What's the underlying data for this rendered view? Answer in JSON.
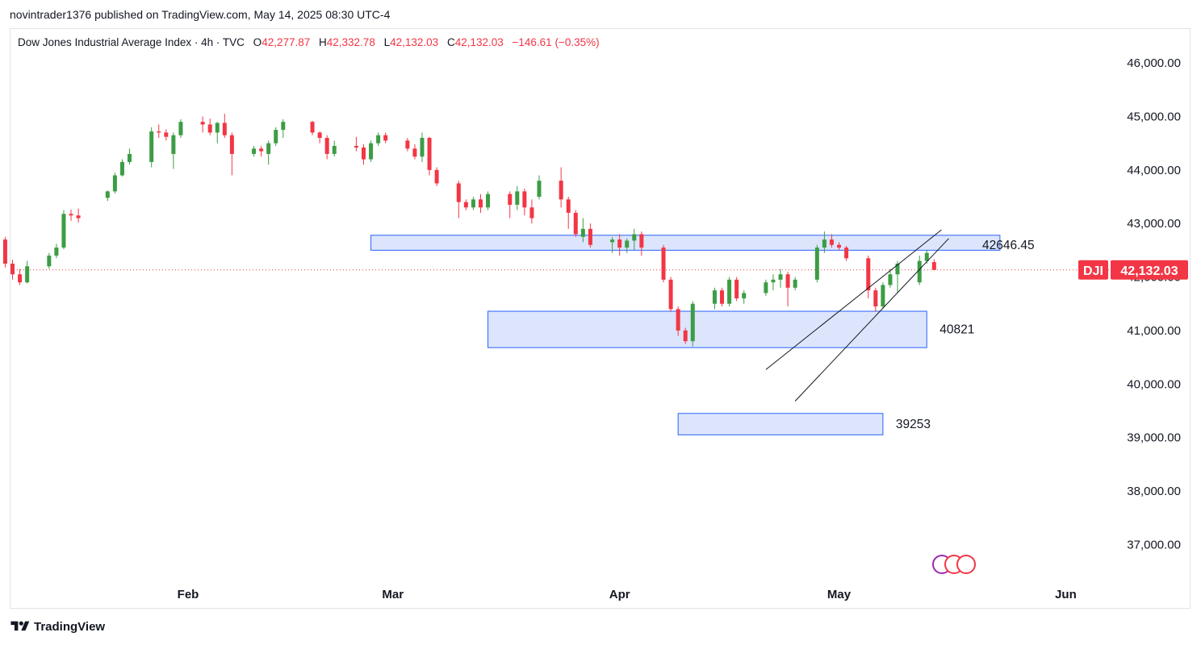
{
  "header": {
    "publisher_line": "novintrader1376 published on TradingView.com, May 14, 2025 08:30 UTC-4"
  },
  "legend": {
    "instrument": "Dow Jones Industrial Average Index · 4h · TVC",
    "open_key": "O",
    "open": "42,277.87",
    "high_key": "H",
    "high": "42,332.78",
    "low_key": "L",
    "low": "42,132.03",
    "close_key": "C",
    "close": "42,132.03",
    "change": "−146.61 (−0.35%)"
  },
  "price_badge": {
    "symbol": "DJI",
    "price": "42,132.03",
    "color": "#f23645"
  },
  "footer": {
    "brand": "TradingView"
  },
  "colors": {
    "up": "#3c9d44",
    "down": "#f23645",
    "zone_fill": "#d6e0fb",
    "zone_border": "#2962ff",
    "text": "#131722"
  },
  "chart_data": {
    "type": "candlestick",
    "timeframe": "4h",
    "x_ticks": [
      "Feb",
      "Mar",
      "Apr",
      "May",
      "Jun"
    ],
    "y_ticks": [
      "37,000.00",
      "38,000.00",
      "39,000.00",
      "40,000.00",
      "41,000.00",
      "42,000.00",
      "43,000.00",
      "44,000.00",
      "45,000.00",
      "46,000.00"
    ],
    "ylim": [
      36500,
      46400
    ],
    "last_price": 42132.03,
    "zones": [
      {
        "label": "",
        "from": "2025-02-26",
        "to": "2025-05-23",
        "low": 42500,
        "high": 42780
      },
      {
        "label": "40821",
        "from": "2025-03-14",
        "to": "2025-05-13",
        "low": 40680,
        "high": 41360
      },
      {
        "label": "39253",
        "from": "2025-04-09",
        "to": "2025-05-07",
        "low": 39050,
        "high": 39450
      }
    ],
    "channel": {
      "upper": {
        "from": [
          "2025-04-21",
          40270
        ],
        "to": [
          "2025-05-15",
          42880
        ]
      },
      "lower": {
        "from": [
          "2025-04-25",
          39680
        ],
        "to": [
          "2025-05-16",
          42720
        ]
      },
      "label": "42646.45"
    },
    "candles": [
      {
        "date": "2025-01-06",
        "open": 42580,
        "high": 42710,
        "low": 42380,
        "close": 42700
      },
      {
        "date": "2025-01-07",
        "open": 42700,
        "high": 42750,
        "low": 42180,
        "close": 42250
      },
      {
        "date": "2025-01-08",
        "open": 42250,
        "high": 42320,
        "low": 41950,
        "close": 42050
      },
      {
        "date": "2025-01-09",
        "open": 42050,
        "high": 42150,
        "low": 41850,
        "close": 41900
      },
      {
        "date": "2025-01-10",
        "open": 41900,
        "high": 42300,
        "low": 41880,
        "close": 42200
      },
      {
        "date": "2025-01-13",
        "open": 42200,
        "high": 42450,
        "low": 42150,
        "close": 42400
      },
      {
        "date": "2025-01-14",
        "open": 42400,
        "high": 42620,
        "low": 42350,
        "close": 42550
      },
      {
        "date": "2025-01-15",
        "open": 42550,
        "high": 43250,
        "low": 42520,
        "close": 43180
      },
      {
        "date": "2025-01-16",
        "open": 43180,
        "high": 43260,
        "low": 43050,
        "close": 43150
      },
      {
        "date": "2025-01-17",
        "open": 43150,
        "high": 43280,
        "low": 43020,
        "close": 43100
      },
      {
        "date": "2025-01-21",
        "open": 43480,
        "high": 43620,
        "low": 43420,
        "close": 43600
      },
      {
        "date": "2025-01-22",
        "open": 43600,
        "high": 43950,
        "low": 43560,
        "close": 43900
      },
      {
        "date": "2025-01-23",
        "open": 43900,
        "high": 44200,
        "low": 43880,
        "close": 44150
      },
      {
        "date": "2025-01-24",
        "open": 44150,
        "high": 44400,
        "low": 44100,
        "close": 44300
      },
      {
        "date": "2025-01-27",
        "open": 44150,
        "high": 44800,
        "low": 44050,
        "close": 44720
      },
      {
        "date": "2025-01-28",
        "open": 44720,
        "high": 44850,
        "low": 44600,
        "close": 44700
      },
      {
        "date": "2025-01-29",
        "open": 44700,
        "high": 44760,
        "low": 44550,
        "close": 44620
      },
      {
        "date": "2025-01-30",
        "open": 44300,
        "high": 44700,
        "low": 44020,
        "close": 44650
      },
      {
        "date": "2025-01-31",
        "open": 44650,
        "high": 44950,
        "low": 44600,
        "close": 44900
      },
      {
        "date": "2025-02-03",
        "open": 44900,
        "high": 45000,
        "low": 44700,
        "close": 44850
      },
      {
        "date": "2025-02-04",
        "open": 44850,
        "high": 44960,
        "low": 44650,
        "close": 44700
      },
      {
        "date": "2025-02-05",
        "open": 44700,
        "high": 44900,
        "low": 44500,
        "close": 44880
      },
      {
        "date": "2025-02-06",
        "open": 44880,
        "high": 45050,
        "low": 44600,
        "close": 44650
      },
      {
        "date": "2025-02-07",
        "open": 44650,
        "high": 44700,
        "low": 43900,
        "close": 44300
      },
      {
        "date": "2025-02-10",
        "open": 44300,
        "high": 44450,
        "low": 44250,
        "close": 44400
      },
      {
        "date": "2025-02-11",
        "open": 44400,
        "high": 44450,
        "low": 44250,
        "close": 44350
      },
      {
        "date": "2025-02-12",
        "open": 44300,
        "high": 44550,
        "low": 44100,
        "close": 44500
      },
      {
        "date": "2025-02-13",
        "open": 44500,
        "high": 44800,
        "low": 44450,
        "close": 44750
      },
      {
        "date": "2025-02-14",
        "open": 44750,
        "high": 44950,
        "low": 44600,
        "close": 44900
      },
      {
        "date": "2025-02-18",
        "open": 44900,
        "high": 44920,
        "low": 44650,
        "close": 44700
      },
      {
        "date": "2025-02-19",
        "open": 44700,
        "high": 44720,
        "low": 44500,
        "close": 44600
      },
      {
        "date": "2025-02-20",
        "open": 44600,
        "high": 44650,
        "low": 44200,
        "close": 44300
      },
      {
        "date": "2025-02-21",
        "open": 44300,
        "high": 44550,
        "low": 44250,
        "close": 44450
      },
      {
        "date": "2025-02-24",
        "open": 44450,
        "high": 44620,
        "low": 44350,
        "close": 44420
      },
      {
        "date": "2025-02-25",
        "open": 44420,
        "high": 44480,
        "low": 44100,
        "close": 44200
      },
      {
        "date": "2025-02-26",
        "open": 44200,
        "high": 44550,
        "low": 44150,
        "close": 44500
      },
      {
        "date": "2025-02-27",
        "open": 44500,
        "high": 44700,
        "low": 44450,
        "close": 44650
      },
      {
        "date": "2025-02-28",
        "open": 44650,
        "high": 44700,
        "low": 44500,
        "close": 44550
      },
      {
        "date": "2025-03-03",
        "open": 44550,
        "high": 44600,
        "low": 44350,
        "close": 44400
      },
      {
        "date": "2025-03-04",
        "open": 44400,
        "high": 44480,
        "low": 44200,
        "close": 44250
      },
      {
        "date": "2025-03-05",
        "open": 44250,
        "high": 44700,
        "low": 44150,
        "close": 44600
      },
      {
        "date": "2025-03-06",
        "open": 44600,
        "high": 44620,
        "low": 43900,
        "close": 44000
      },
      {
        "date": "2025-03-07",
        "open": 44000,
        "high": 44050,
        "low": 43700,
        "close": 43750
      },
      {
        "date": "2025-03-10",
        "open": 43750,
        "high": 43800,
        "low": 43100,
        "close": 43400
      },
      {
        "date": "2025-03-11",
        "open": 43400,
        "high": 43450,
        "low": 43250,
        "close": 43300
      },
      {
        "date": "2025-03-12",
        "open": 43300,
        "high": 43500,
        "low": 43250,
        "close": 43450
      },
      {
        "date": "2025-03-13",
        "open": 43450,
        "high": 43550,
        "low": 43200,
        "close": 43300
      },
      {
        "date": "2025-03-14",
        "open": 43300,
        "high": 43600,
        "low": 43250,
        "close": 43550
      },
      {
        "date": "2025-03-17",
        "open": 43550,
        "high": 43600,
        "low": 43100,
        "close": 43350
      },
      {
        "date": "2025-03-18",
        "open": 43350,
        "high": 43700,
        "low": 43250,
        "close": 43600
      },
      {
        "date": "2025-03-19",
        "open": 43600,
        "high": 43650,
        "low": 43150,
        "close": 43300
      },
      {
        "date": "2025-03-20",
        "open": 43300,
        "high": 43450,
        "low": 43000,
        "close": 43100
      },
      {
        "date": "2025-03-21",
        "open": 43500,
        "high": 43900,
        "low": 43450,
        "close": 43800
      },
      {
        "date": "2025-03-24",
        "open": 43800,
        "high": 44050,
        "low": 43300,
        "close": 43450
      },
      {
        "date": "2025-03-25",
        "open": 43450,
        "high": 43500,
        "low": 42900,
        "close": 43200
      },
      {
        "date": "2025-03-26",
        "open": 43200,
        "high": 43250,
        "low": 42750,
        "close": 42800
      },
      {
        "date": "2025-03-27",
        "open": 42750,
        "high": 43100,
        "low": 42650,
        "close": 42900
      },
      {
        "date": "2025-03-28",
        "open": 42900,
        "high": 43000,
        "low": 42550,
        "close": 42600
      },
      {
        "date": "2025-03-31",
        "open": 42650,
        "high": 42750,
        "low": 42450,
        "close": 42700
      },
      {
        "date": "2025-04-01",
        "open": 42700,
        "high": 42800,
        "low": 42400,
        "close": 42550
      },
      {
        "date": "2025-04-02",
        "open": 42550,
        "high": 42720,
        "low": 42450,
        "close": 42680
      },
      {
        "date": "2025-04-03",
        "open": 42680,
        "high": 42900,
        "low": 42500,
        "close": 42800
      },
      {
        "date": "2025-04-04",
        "open": 42800,
        "high": 42850,
        "low": 42400,
        "close": 42550
      },
      {
        "date": "2025-04-07",
        "open": 42550,
        "high": 42600,
        "low": 41900,
        "close": 41950
      },
      {
        "date": "2025-04-08",
        "open": 41950,
        "high": 42000,
        "low": 41350,
        "close": 41400
      },
      {
        "date": "2025-04-09",
        "open": 41400,
        "high": 41450,
        "low": 40900,
        "close": 41000
      },
      {
        "date": "2025-04-10",
        "open": 41000,
        "high": 41050,
        "low": 40750,
        "close": 40800
      },
      {
        "date": "2025-04-11",
        "open": 40800,
        "high": 41550,
        "low": 40700,
        "close": 41500
      },
      {
        "date": "2025-04-14",
        "open": 41500,
        "high": 41800,
        "low": 41400,
        "close": 41750
      },
      {
        "date": "2025-04-15",
        "open": 41750,
        "high": 41800,
        "low": 41450,
        "close": 41500
      },
      {
        "date": "2025-04-16",
        "open": 41500,
        "high": 42000,
        "low": 41450,
        "close": 41950
      },
      {
        "date": "2025-04-17",
        "open": 41950,
        "high": 42000,
        "low": 41550,
        "close": 41600
      },
      {
        "date": "2025-04-18",
        "open": 41600,
        "high": 41750,
        "low": 41500,
        "close": 41700
      },
      {
        "date": "2025-04-21",
        "open": 41700,
        "high": 41950,
        "low": 41650,
        "close": 41900
      },
      {
        "date": "2025-04-22",
        "open": 41900,
        "high": 42050,
        "low": 41750,
        "close": 41950
      },
      {
        "date": "2025-04-23",
        "open": 41950,
        "high": 42150,
        "low": 41800,
        "close": 42050
      },
      {
        "date": "2025-04-24",
        "open": 42050,
        "high": 42100,
        "low": 41450,
        "close": 41800
      },
      {
        "date": "2025-04-25",
        "open": 41800,
        "high": 42000,
        "low": 41750,
        "close": 41950
      },
      {
        "date": "2025-04-28",
        "open": 41950,
        "high": 42600,
        "low": 41900,
        "close": 42550
      },
      {
        "date": "2025-04-29",
        "open": 42550,
        "high": 42850,
        "low": 42450,
        "close": 42700
      },
      {
        "date": "2025-04-30",
        "open": 42700,
        "high": 42800,
        "low": 42550,
        "close": 42600
      },
      {
        "date": "2025-05-01",
        "open": 42600,
        "high": 42650,
        "low": 42500,
        "close": 42550
      },
      {
        "date": "2025-05-02",
        "open": 42550,
        "high": 42580,
        "low": 42300,
        "close": 42350
      },
      {
        "date": "2025-05-05",
        "open": 42350,
        "high": 42400,
        "low": 41600,
        "close": 41750
      },
      {
        "date": "2025-05-06",
        "open": 41750,
        "high": 41800,
        "low": 41350,
        "close": 41450
      },
      {
        "date": "2025-05-07",
        "open": 41450,
        "high": 41900,
        "low": 41400,
        "close": 41850
      },
      {
        "date": "2025-05-08",
        "open": 41850,
        "high": 42150,
        "low": 41800,
        "close": 42050
      },
      {
        "date": "2025-05-09",
        "open": 42050,
        "high": 42300,
        "low": 41700,
        "close": 42250
      },
      {
        "date": "2025-05-12",
        "open": 41900,
        "high": 42400,
        "low": 41850,
        "close": 42300
      },
      {
        "date": "2025-05-13",
        "open": 42300,
        "high": 42500,
        "low": 42250,
        "close": 42450
      },
      {
        "date": "2025-05-14",
        "open": 42277.87,
        "high": 42332.78,
        "low": 42132.03,
        "close": 42132.03
      }
    ]
  }
}
